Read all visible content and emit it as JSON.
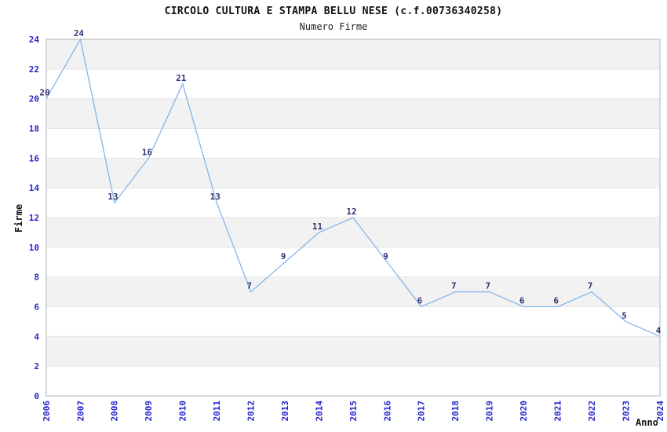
{
  "chart_data": {
    "type": "line",
    "title": "CIRCOLO CULTURA E STAMPA BELLU NESE (c.f.00736340258)",
    "subtitle": "Numero Firme",
    "xlabel": "Anno",
    "ylabel": "Firme",
    "categories": [
      "2006",
      "2007",
      "2008",
      "2009",
      "2010",
      "2011",
      "2012",
      "2013",
      "2014",
      "2015",
      "2016",
      "2017",
      "2018",
      "2019",
      "2020",
      "2021",
      "2022",
      "2023",
      "2024"
    ],
    "values": [
      20,
      24,
      13,
      16,
      21,
      13,
      7,
      9,
      11,
      12,
      9,
      6,
      7,
      7,
      6,
      6,
      7,
      5,
      4
    ],
    "data_labels_visible": true,
    "ylim": [
      0,
      24
    ],
    "yticks": [
      0,
      2,
      4,
      6,
      8,
      10,
      12,
      14,
      16,
      18,
      20,
      22,
      24
    ],
    "grid": "alternating-horizontal-bands",
    "legend": "none",
    "colors": {
      "line": "#85b5e8",
      "tick_label": "#2323cb",
      "data_label": "#333377",
      "band_fill": "#f2f2f2",
      "gridline": "#e4e4e4",
      "plot_border": "#cccccc",
      "background": "#ffffff",
      "text": "#111111"
    }
  }
}
